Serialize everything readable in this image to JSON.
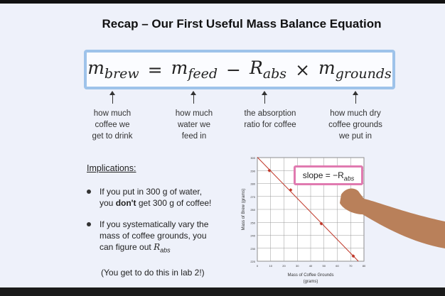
{
  "slide": {
    "title": "Recap – Our First Useful Mass Balance Equation",
    "equation": {
      "lhs": {
        "base": "m",
        "sub": "brew"
      },
      "equals": "=",
      "term1": {
        "base": "m",
        "sub": "feed"
      },
      "minus": "−",
      "term2": {
        "base": "R",
        "sub": "abs"
      },
      "times": "×",
      "term3": {
        "base": "m",
        "sub": "grounds"
      }
    },
    "annotations": [
      [
        "how much",
        "coffee we",
        "get to drink"
      ],
      [
        "how much",
        "water we",
        "feed in"
      ],
      [
        "the absorption",
        "ratio for coffee"
      ],
      [
        "how much dry",
        "coffee grounds",
        "we put in"
      ]
    ],
    "implications": {
      "heading": "Implications:",
      "bullet1": [
        "If you put in 300 g of water,",
        "you ",
        "don't",
        " get 300 g of coffee!"
      ],
      "bullet2": [
        "If you systematically vary the mass of coffee grounds, you can figure out ",
        "R",
        "abs"
      ],
      "note": "(You get to do this in lab 2!)"
    }
  },
  "chart_data": {
    "type": "scatter",
    "xlabel": [
      "Mass of Coffee Grounds",
      "(grams)"
    ],
    "ylabel": "Mass of Brew (grams)",
    "annotation": {
      "text": "slope = −R",
      "sub": "abs"
    },
    "x": [
      9,
      25,
      48,
      72
    ],
    "series": [
      {
        "name": "brew",
        "color": "#c0392b",
        "values": [
          290,
          275,
          249,
          224
        ]
      }
    ],
    "xlim": [
      0,
      80
    ],
    "xticks": [
      0,
      10,
      20,
      30,
      40,
      50,
      60,
      70,
      80
    ],
    "ylim": [
      220,
      300
    ],
    "yticks": [
      220,
      230,
      240,
      250,
      260,
      270,
      280,
      290,
      300
    ],
    "grid": true
  }
}
